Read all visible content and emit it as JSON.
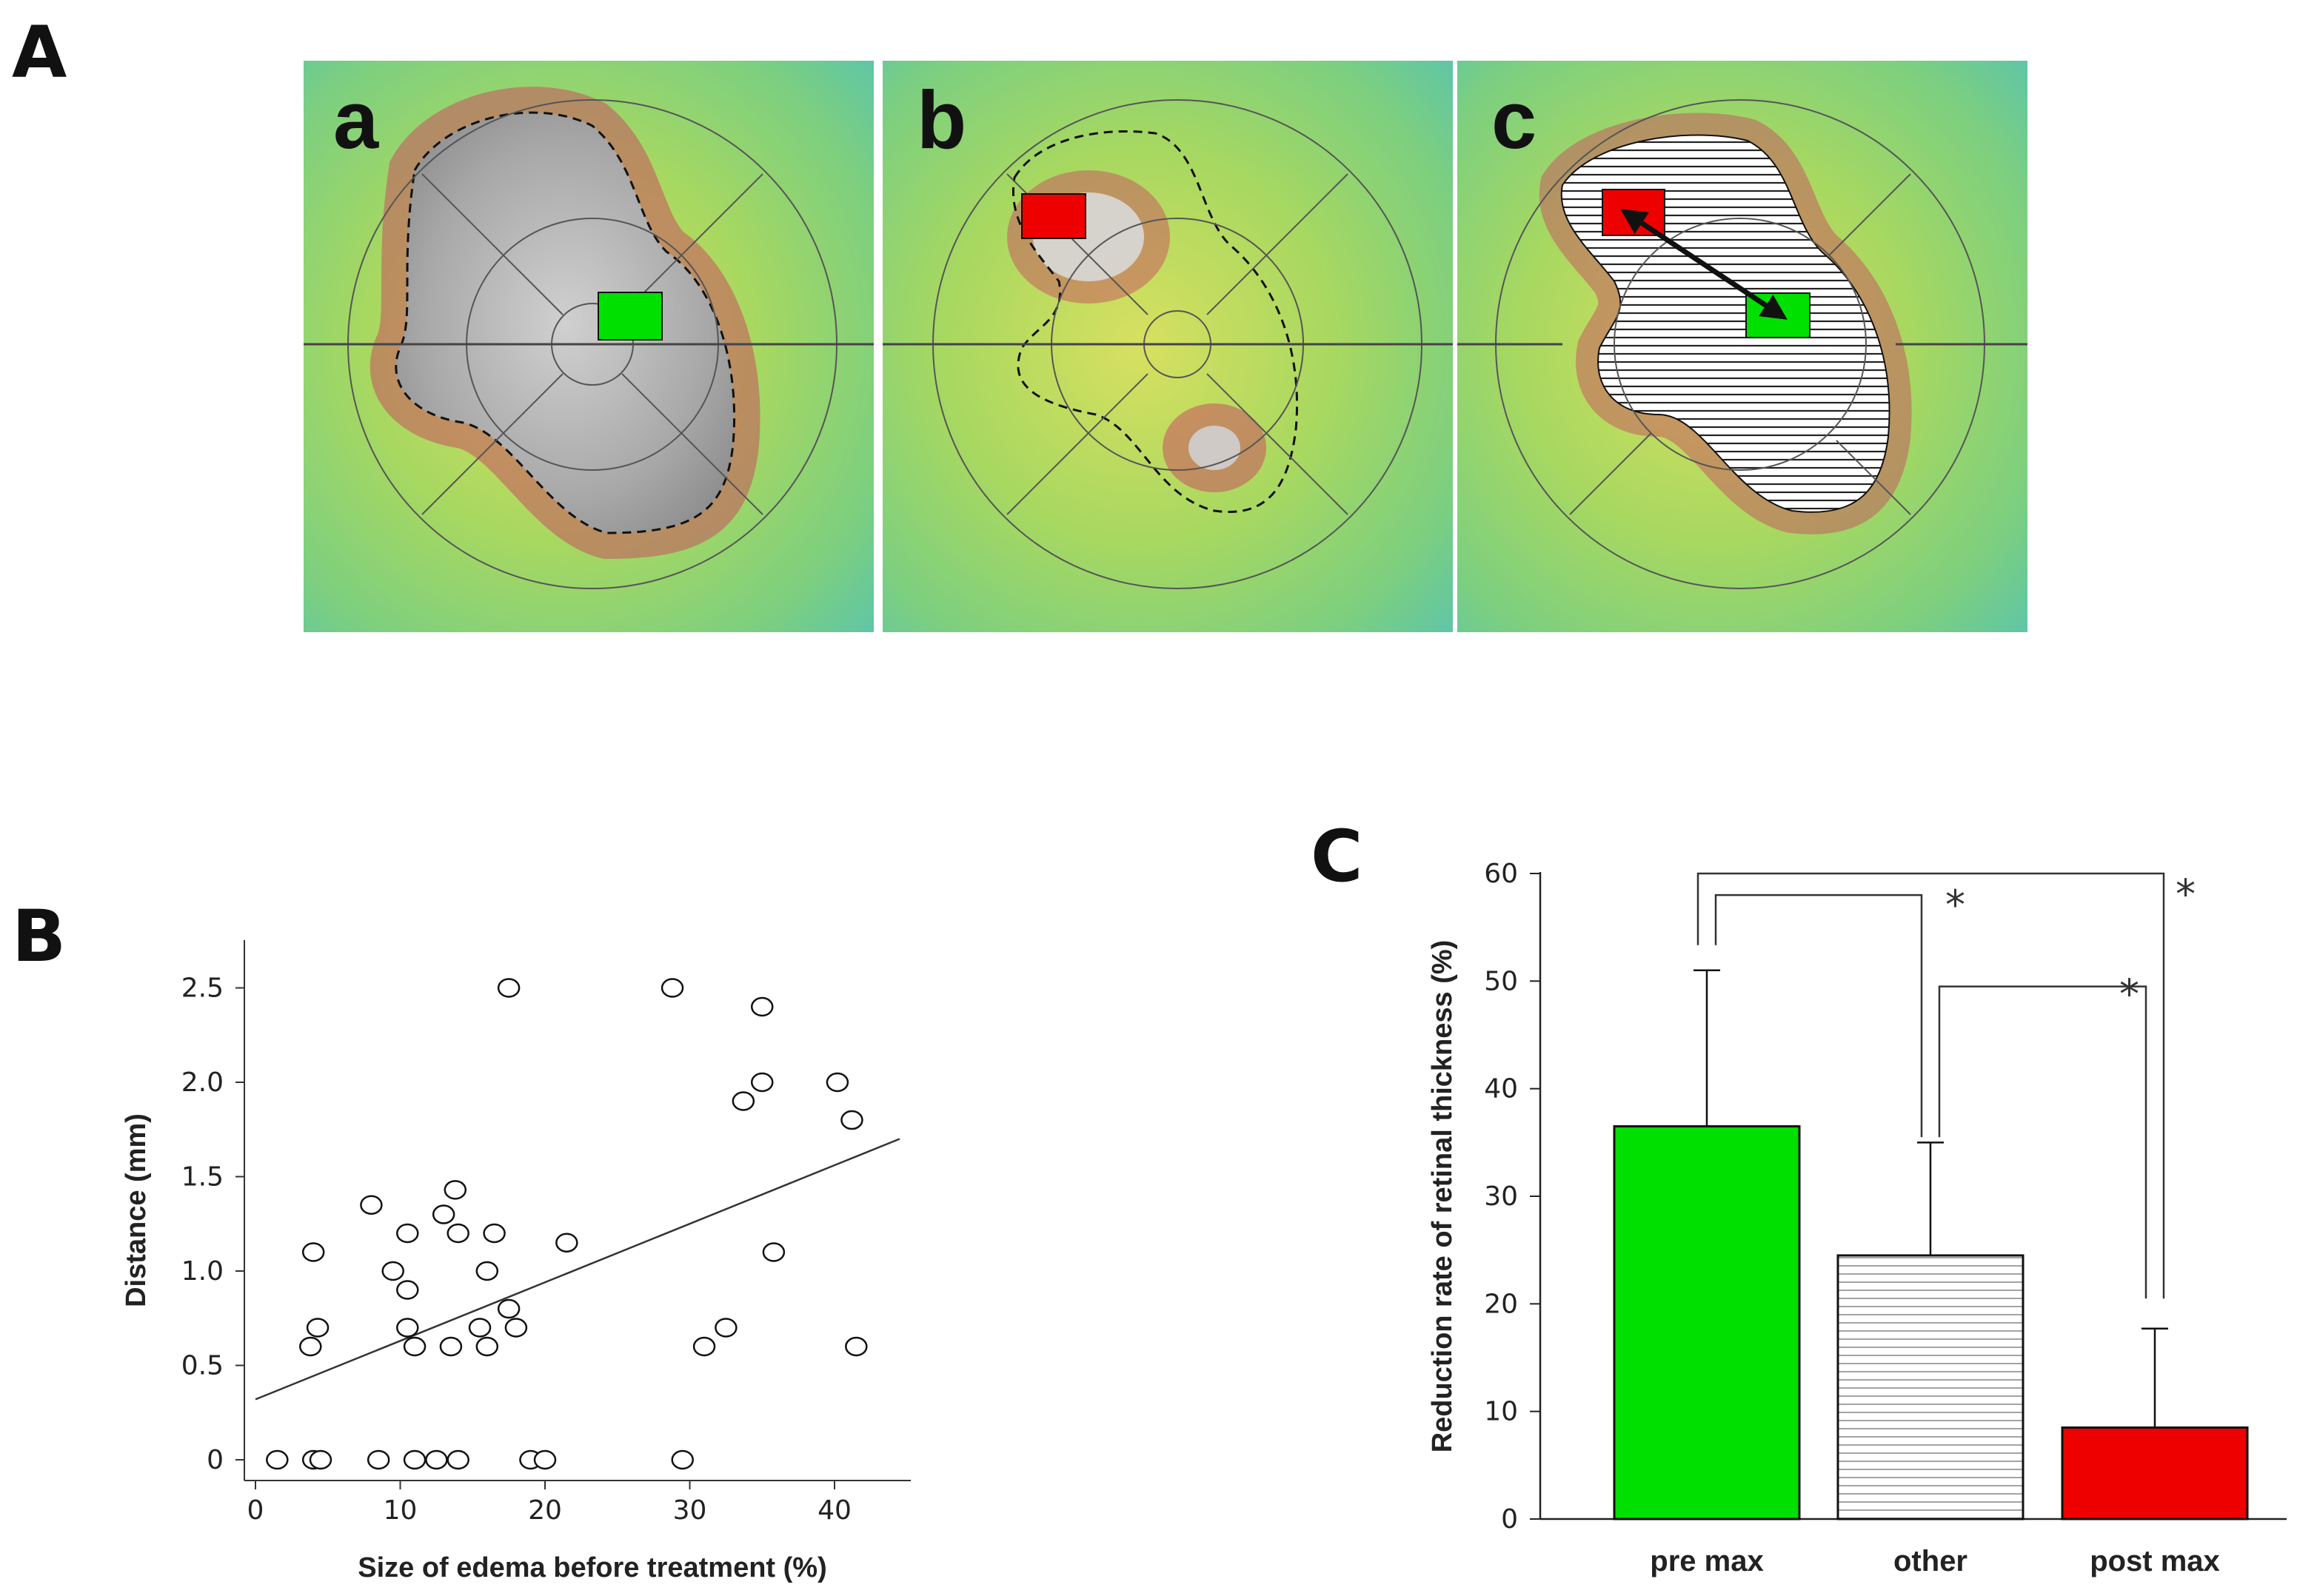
{
  "panel_a": {
    "label": "A",
    "subpanels": [
      {
        "letter": "a",
        "description": "edema outline (dashed) with green box at pre-treatment maximum"
      },
      {
        "letter": "b",
        "description": "post-treatment map with red box at post-treatment maximum"
      },
      {
        "letter": "c",
        "description": "hatched edema region, arrow from red box to green box"
      }
    ],
    "colors": {
      "pre_max_box": "#00e000",
      "post_max_box": "#ee0000",
      "other": "#ffffff"
    }
  },
  "panel_b": {
    "label": "B"
  },
  "panel_c": {
    "label": "C"
  },
  "chart_data": [
    {
      "id": "B",
      "type": "scatter",
      "title": "",
      "xlabel": "Size of edema before treatment (%)",
      "ylabel": "Distance  (mm)",
      "xlim": [
        0,
        46
      ],
      "ylim": [
        0,
        2.7
      ],
      "xticks": [
        0,
        10,
        20,
        30,
        40
      ],
      "xtick_labels": [
        "0",
        "10",
        "20",
        "30",
        "40"
      ],
      "yticks": [
        0,
        0.5,
        1.0,
        1.5,
        2.0,
        2.5
      ],
      "ytick_labels": [
        "0",
        "0.5",
        "1.0",
        "1.5",
        "2.0",
        "2.5"
      ],
      "points": [
        [
          1.5,
          0
        ],
        [
          4,
          0
        ],
        [
          4.5,
          0
        ],
        [
          8.5,
          0
        ],
        [
          11,
          0
        ],
        [
          12.5,
          0
        ],
        [
          14,
          0
        ],
        [
          19,
          0
        ],
        [
          20,
          0
        ],
        [
          29.5,
          0
        ],
        [
          4,
          1.1
        ],
        [
          3.8,
          0.6
        ],
        [
          4.3,
          0.7
        ],
        [
          8,
          1.35
        ],
        [
          10.5,
          1.2
        ],
        [
          9.5,
          1.0
        ],
        [
          10.5,
          0.9
        ],
        [
          10.5,
          0.7
        ],
        [
          11,
          0.6
        ],
        [
          13,
          1.3
        ],
        [
          13.5,
          0.6
        ],
        [
          13.8,
          1.43
        ],
        [
          14,
          1.2
        ],
        [
          15.5,
          0.7
        ],
        [
          16,
          1.0
        ],
        [
          16,
          0.6
        ],
        [
          16.5,
          1.2
        ],
        [
          17.5,
          0.8
        ],
        [
          18,
          0.7
        ],
        [
          21.5,
          1.15
        ],
        [
          17.5,
          2.5
        ],
        [
          28.8,
          2.5
        ],
        [
          31,
          0.6
        ],
        [
          32.5,
          0.7
        ],
        [
          33.7,
          1.9
        ],
        [
          35,
          2.0
        ],
        [
          35,
          2.4
        ],
        [
          35.8,
          1.1
        ],
        [
          40.2,
          2.0
        ],
        [
          41.2,
          1.8
        ],
        [
          41.5,
          0.6
        ]
      ],
      "regression_line": {
        "x": [
          0,
          44.5
        ],
        "y": [
          0.32,
          1.7
        ]
      }
    },
    {
      "id": "C",
      "type": "bar",
      "ylabel": "Reduction  rate of retinal thickness  (%)",
      "ylim": [
        0,
        60
      ],
      "yticks": [
        0,
        10,
        20,
        30,
        40,
        50,
        60
      ],
      "ytick_labels": [
        "0",
        "10",
        "20",
        "30",
        "40",
        "50",
        "60"
      ],
      "categories": [
        "pre max",
        "other",
        "post  max"
      ],
      "values": [
        36.5,
        24.5,
        8.5
      ],
      "errors": [
        14.5,
        10.5,
        9.2
      ],
      "bar_colors": [
        "#00e000",
        "#ffffff",
        "#ee0000"
      ],
      "bar_patterns": [
        "solid",
        "horizontal-lines",
        "solid"
      ],
      "significance": [
        {
          "pair": [
            "pre max",
            "other"
          ],
          "label": "*"
        },
        {
          "pair": [
            "other",
            "post  max"
          ],
          "label": "*"
        },
        {
          "pair": [
            "pre max",
            "post  max"
          ],
          "label": "*"
        }
      ]
    }
  ]
}
